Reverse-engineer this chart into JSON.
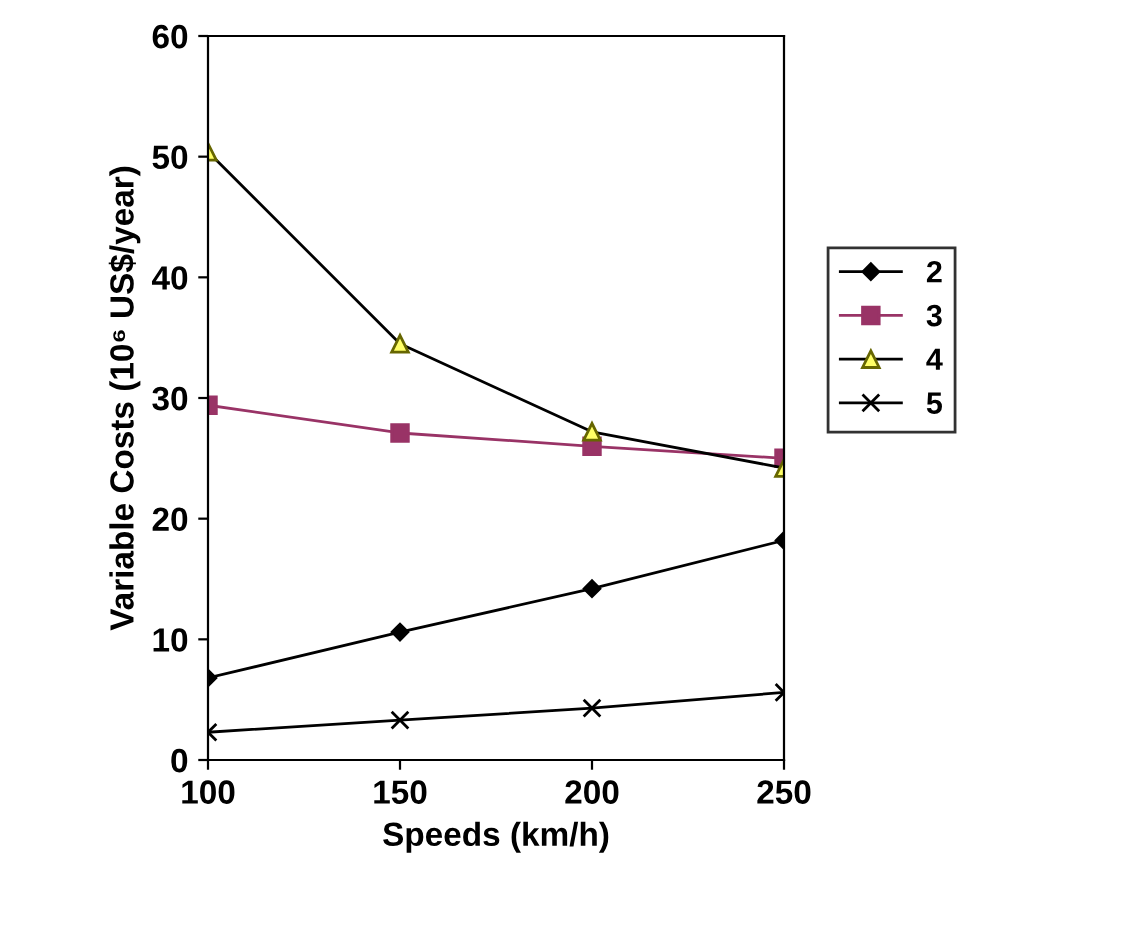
{
  "chart_data": {
    "type": "line",
    "xlabel": "Speeds (km/h)",
    "ylabel": "Variable Costs (10⁶ US$/year)",
    "x": [
      100,
      150,
      200,
      250
    ],
    "series": [
      {
        "name": "2",
        "color": "#000000",
        "marker": "diamond",
        "values": [
          6.8,
          10.6,
          14.2,
          18.2
        ]
      },
      {
        "name": "3",
        "color": "#993366",
        "marker": "square",
        "values": [
          29.4,
          27.1,
          26.0,
          25.0
        ]
      },
      {
        "name": "4",
        "color": "#ffff66",
        "marker": "triangle",
        "values": [
          50.4,
          34.5,
          27.2,
          24.2
        ]
      },
      {
        "name": "5",
        "color": "#000000",
        "marker": "cross",
        "values": [
          2.3,
          3.3,
          4.3,
          5.6
        ]
      }
    ],
    "xlim": [
      100,
      250
    ],
    "xticks": [
      100,
      150,
      200,
      250
    ],
    "ylim": [
      0,
      60
    ],
    "yticks": [
      0,
      10,
      20,
      30,
      40,
      50,
      60
    ],
    "grid": false,
    "legend": "right",
    "line_style": "solid"
  }
}
